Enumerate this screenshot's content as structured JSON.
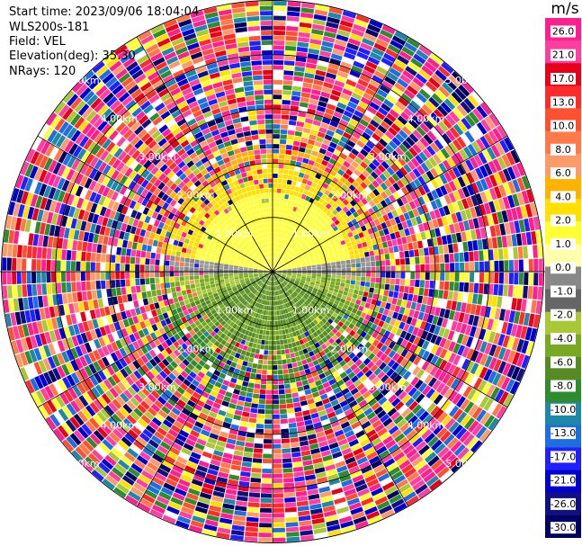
{
  "header": {
    "start_time": "Start time: 2023/09/06 18:04:04",
    "instrument": "WLS200s-181",
    "field": "Field: VEL",
    "elevation": "Elevation(deg): 35.30",
    "nrays": "NRays: 120"
  },
  "rings": [
    {
      "range_km": 1.0,
      "label": "1.00km"
    },
    {
      "range_km": 2.0,
      "label": "2.00km"
    },
    {
      "range_km": 3.0,
      "label": "3.00km"
    },
    {
      "range_km": 4.0,
      "label": "4.00km"
    },
    {
      "range_km": 5.0,
      "label": "5.00km"
    }
  ],
  "spokes_deg": [
    0,
    30,
    60,
    90,
    120,
    150,
    180,
    210,
    240,
    270,
    300,
    330
  ],
  "colorbar": {
    "unit": "m/s",
    "ticks": [
      "26.0",
      "21.0",
      "17.0",
      "13.0",
      "10.0",
      "8.0",
      "6.0",
      "4.0",
      "2.0",
      "1.0",
      "0.0",
      "-1.0",
      "-2.0",
      "-4.0",
      "-6.0",
      "-8.0",
      "-10.0",
      "-13.0",
      "-17.0",
      "-21.0",
      "-26.0",
      "-30.0"
    ],
    "colors": [
      "#ff1f8f",
      "#ff3f9f",
      "#e8001a",
      "#ff2b2b",
      "#ff5030",
      "#ff7a48",
      "#ff9a6a",
      "#ffb200",
      "#ffe000",
      "#ffff33",
      "#ffffaa",
      "#888888",
      "#666666",
      "#a8c838",
      "#77aa22",
      "#558b22",
      "#2e8b2e",
      "#1e88a8",
      "#1e6ee0",
      "#2020ff",
      "#0000cc",
      "#101080",
      "#000060"
    ]
  },
  "field": {
    "type": "polar_velocity",
    "nrays": 120,
    "ngates": 55,
    "max_range_km": 5.0,
    "clutter_start_km": 1.2,
    "clutter_full_km": 2.6
  }
}
